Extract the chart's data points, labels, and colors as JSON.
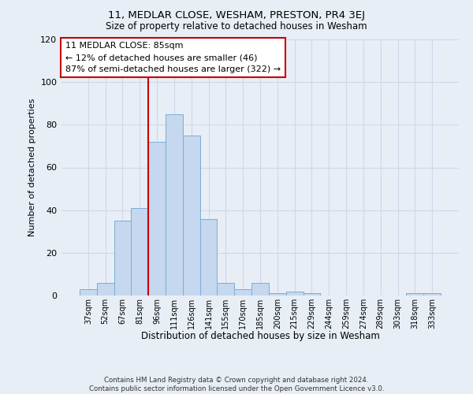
{
  "title1": "11, MEDLAR CLOSE, WESHAM, PRESTON, PR4 3EJ",
  "title2": "Size of property relative to detached houses in Wesham",
  "xlabel": "Distribution of detached houses by size in Wesham",
  "ylabel": "Number of detached properties",
  "categories": [
    "37sqm",
    "52sqm",
    "67sqm",
    "81sqm",
    "96sqm",
    "111sqm",
    "126sqm",
    "141sqm",
    "155sqm",
    "170sqm",
    "185sqm",
    "200sqm",
    "215sqm",
    "229sqm",
    "244sqm",
    "259sqm",
    "274sqm",
    "289sqm",
    "303sqm",
    "318sqm",
    "333sqm"
  ],
  "values": [
    3,
    6,
    35,
    41,
    72,
    85,
    75,
    36,
    6,
    3,
    6,
    1,
    2,
    1,
    0,
    0,
    0,
    0,
    0,
    1,
    1
  ],
  "bar_color": "#c5d8ef",
  "bar_edgecolor": "#7aaed6",
  "vline_index": 3,
  "vline_color": "#cc0000",
  "annotation_text": "11 MEDLAR CLOSE: 85sqm\n← 12% of detached houses are smaller (46)\n87% of semi-detached houses are larger (322) →",
  "annotation_box_color": "white",
  "annotation_box_edgecolor": "#cc0000",
  "ylim": [
    0,
    120
  ],
  "yticks": [
    0,
    20,
    40,
    60,
    80,
    100,
    120
  ],
  "footnote": "Contains HM Land Registry data © Crown copyright and database right 2024.\nContains public sector information licensed under the Open Government Licence v3.0.",
  "background_color": "#e8eef6",
  "grid_color": "#d0d8e8"
}
